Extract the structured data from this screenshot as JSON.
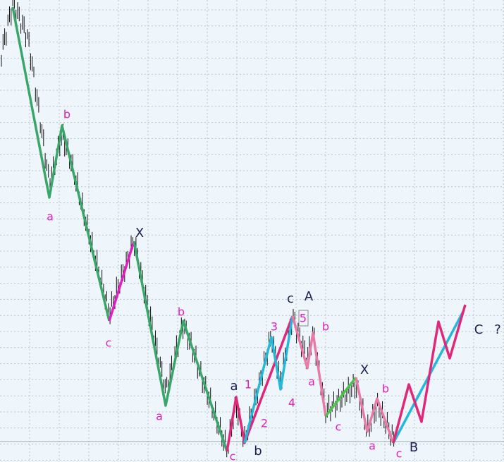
{
  "labels": [
    "b",
    "a",
    "X",
    "c",
    "b",
    "a",
    "a",
    "1",
    "2",
    "b",
    "c",
    "3",
    "4",
    "c",
    "A",
    "5",
    "b",
    "a",
    "c",
    "X",
    "b",
    "a",
    "c",
    "B",
    "C",
    "?"
  ]
}
